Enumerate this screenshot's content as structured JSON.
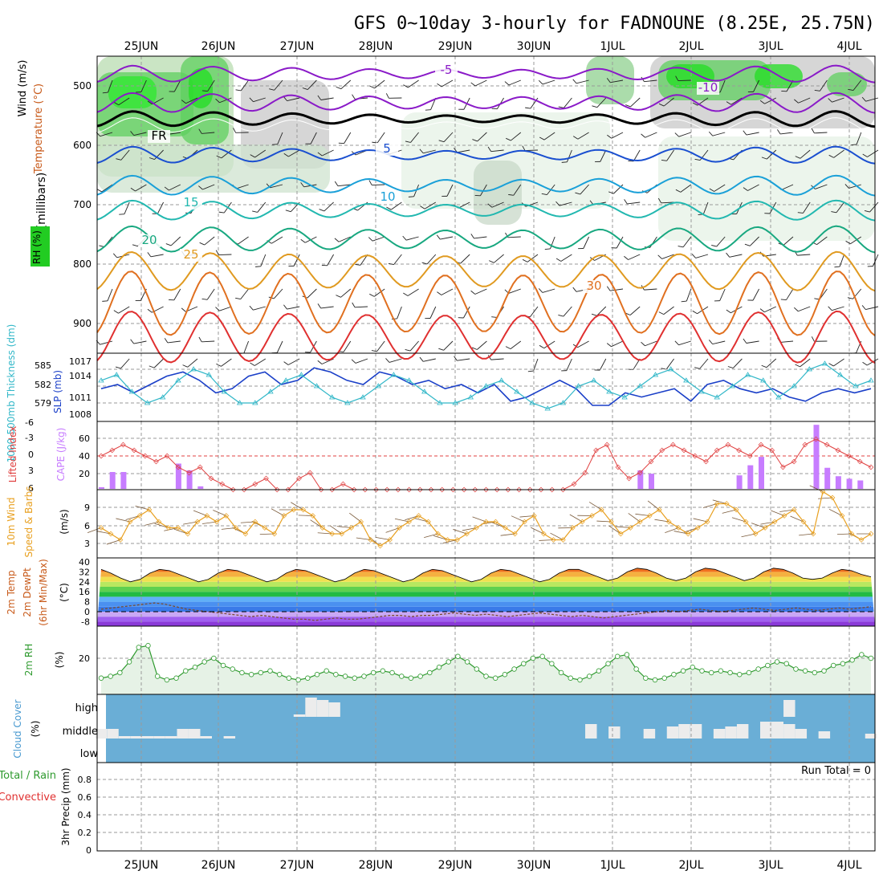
{
  "title": "GFS 0~10day 3-hourly for FADNOUNE (8.25E, 25.75N)",
  "date_labels": [
    "25JUN",
    "26JUN",
    "27JUN",
    "28JUN",
    "29JUN",
    "30JUN",
    "1JUL",
    "2JUL",
    "3JUL",
    "4JUL"
  ],
  "colors": {
    "grid": "#9a9a9a",
    "cloud_bg": "#6aaed6",
    "rh_line": "#2e9a2e",
    "rh_fill": "#e6f2e6",
    "cape_bar": "#c77dff",
    "lifted_index": "#e04040",
    "slp": "#1a3fc8",
    "thickness": "#31b7c8",
    "wind10m": "#e8a020",
    "purple_contour": "#8a1ac8",
    "fr_line": "#000000"
  },
  "panels": {
    "upper_air": {
      "y_label_wind": "Wind (m/s)",
      "y_label_temp": "Temperature (°C)",
      "y_label_rh": "RH (%)",
      "y_label_p": "(millibars)",
      "y_ticks": [
        "500",
        "600",
        "700",
        "800",
        "900"
      ],
      "contour_labels": [
        "-5",
        "-10",
        "5",
        "10",
        "15",
        "20",
        "25",
        "30",
        "FR"
      ]
    },
    "pressure": {
      "label_thickness": "1000-500mb Thickness (dm)",
      "label_slp": "SLP (mb)",
      "left_ticks": [
        "585",
        "582",
        "579"
      ],
      "right_ticks": [
        "1017",
        "1014",
        "1011",
        "1008"
      ]
    },
    "cape": {
      "label_li": "Lifted Index",
      "label_cape": "CAPE (J/kg)",
      "li_ticks": [
        "-6",
        "-3",
        "0",
        "3",
        "6"
      ],
      "cape_ticks": [
        "60",
        "40",
        "20"
      ]
    },
    "wind10m": {
      "label_a": "10m Wind",
      "label_b": "Speed & Barbs",
      "label_units": "(m/s)",
      "ticks": [
        "9",
        "6",
        "3"
      ]
    },
    "temp2m": {
      "label_a": "2m Temp",
      "label_b": "2m DewPt",
      "label_c": "(6hr Min/Max)",
      "label_units": "(°C)",
      "ticks": [
        "40",
        "32",
        "24",
        "16",
        "8",
        "0",
        "-8"
      ]
    },
    "rh2m": {
      "label": "2m RH",
      "units": "(%)",
      "ticks": [
        "20"
      ]
    },
    "cloud": {
      "label": "Cloud Cover",
      "units": "(%)",
      "levels": [
        "high",
        "middle",
        "low"
      ]
    },
    "precip": {
      "label_a": "Total / Rain",
      "label_b": "Convective",
      "label_c": "3hr Precip (mm)",
      "ticks": [
        "0.8",
        "0.6",
        "0.4",
        "0.2",
        "0"
      ],
      "run_total": "Run Total = 0"
    }
  },
  "chart_data": {
    "type": "line",
    "x_dates": [
      "25JUN",
      "26JUN",
      "27JUN",
      "28JUN",
      "29JUN",
      "30JUN",
      "1JUL",
      "2JUL",
      "3JUL",
      "4JUL"
    ],
    "rh2m_pct": [
      9,
      10,
      12,
      18,
      26,
      27,
      10,
      8,
      9,
      13,
      15,
      18,
      20,
      16,
      14,
      12,
      11,
      12,
      13,
      11,
      9,
      8,
      9,
      11,
      13,
      11,
      10,
      9,
      10,
      12,
      13,
      12,
      10,
      9,
      10,
      12,
      15,
      18,
      21,
      18,
      14,
      10,
      9,
      11,
      14,
      17,
      20,
      21,
      17,
      12,
      9,
      8,
      10,
      13,
      17,
      21,
      22,
      14,
      9,
      8,
      9,
      11,
      13,
      15,
      13,
      12,
      13,
      12,
      11,
      12,
      14,
      16,
      18,
      17,
      14,
      13,
      12,
      13,
      16,
      17,
      19,
      22,
      20
    ],
    "temp2m_c": [
      34,
      31,
      27,
      24,
      26,
      31,
      34,
      33,
      30,
      27,
      24,
      26,
      31,
      34,
      33,
      30,
      27,
      24,
      26,
      31,
      34,
      33,
      30,
      27,
      24,
      26,
      31,
      34,
      33,
      30,
      27,
      24,
      26,
      31,
      34,
      33,
      30,
      27,
      24,
      26,
      31,
      34,
      33,
      30,
      27,
      24,
      26,
      31,
      34,
      34,
      31,
      28,
      25,
      27,
      32,
      35,
      34,
      31,
      27,
      25,
      27,
      32,
      35,
      34,
      31,
      28,
      25,
      27,
      32,
      35,
      34,
      31,
      27,
      26,
      27,
      31,
      34,
      33,
      30,
      28
    ],
    "dewpt2m_c": [
      2,
      3,
      4,
      5,
      6,
      7,
      6,
      4,
      2,
      1,
      0,
      -1,
      -2,
      -3,
      -4,
      -3,
      -4,
      -5,
      -6,
      -6,
      -7,
      -6,
      -5,
      -6,
      -6,
      -5,
      -4,
      -3,
      -3,
      -4,
      -3,
      -3,
      -2,
      -1,
      -2,
      -3,
      -2,
      -3,
      -4,
      -3,
      -2,
      -1,
      -2,
      -3,
      -4,
      -3,
      -4,
      -5,
      -4,
      -3,
      -2,
      -1,
      0,
      1,
      0,
      1,
      2,
      1,
      0,
      1,
      2,
      3,
      2,
      1,
      2,
      3,
      2,
      1,
      2,
      3,
      2,
      3,
      4
    ],
    "wind10m_ms": [
      5,
      4,
      3,
      6,
      7,
      8,
      6,
      5,
      5,
      4,
      6,
      7,
      6,
      7,
      5,
      4,
      6,
      5,
      4,
      7,
      8,
      8,
      7,
      5,
      4,
      4,
      5,
      6,
      3,
      2,
      3,
      5,
      6,
      7,
      6,
      4,
      3,
      3,
      4,
      5,
      6,
      6,
      5,
      4,
      6,
      7,
      4,
      3,
      3,
      5,
      6,
      7,
      8,
      6,
      4,
      5,
      6,
      7,
      8,
      6,
      5,
      4,
      5,
      6,
      9,
      9,
      8,
      6,
      4,
      5,
      6,
      7,
      8,
      6,
      4,
      11,
      10,
      7,
      4,
      3,
      4
    ],
    "slp_mb": [
      1012,
      1013,
      1011,
      1013,
      1015,
      1016,
      1014,
      1011,
      1012,
      1015,
      1016,
      1013,
      1014,
      1017,
      1016,
      1014,
      1013,
      1016,
      1015,
      1013,
      1014,
      1012,
      1013,
      1011,
      1013,
      1009,
      1010,
      1012,
      1014,
      1012,
      1008,
      1008,
      1011,
      1010,
      1011,
      1012,
      1009,
      1013,
      1014,
      1012,
      1011,
      1012,
      1010,
      1009,
      1011,
      1012,
      1011,
      1012
    ],
    "thickness_dm": [
      583,
      584,
      581,
      579,
      580,
      583,
      585,
      584,
      581,
      579,
      579,
      581,
      583,
      584,
      582,
      580,
      579,
      580,
      582,
      584,
      583,
      581,
      579,
      579,
      580,
      582,
      583,
      581,
      579,
      578,
      579,
      582,
      583,
      581,
      580,
      582,
      584,
      585,
      583,
      581,
      580,
      582,
      584,
      583,
      580,
      582,
      585,
      586,
      584,
      582,
      583
    ],
    "lifted_index": [
      0,
      -1,
      -2,
      -1,
      0,
      1,
      0,
      2,
      3,
      2,
      4,
      5,
      6,
      6,
      5,
      4,
      6,
      6,
      4,
      3,
      6,
      6,
      5,
      6,
      6,
      6,
      6,
      6,
      6,
      6,
      6,
      6,
      6,
      6,
      6,
      6,
      6,
      6,
      6,
      6,
      6,
      6,
      6,
      5,
      3,
      -1,
      -2,
      2,
      4,
      3,
      1,
      -1,
      -2,
      -1,
      0,
      1,
      -1,
      -2,
      -1,
      0,
      -2,
      -1,
      2,
      1,
      -2,
      -3,
      -2,
      -1,
      0,
      1,
      2
    ],
    "cape_jkg": [
      2,
      20,
      20,
      0,
      0,
      0,
      0,
      30,
      22,
      3,
      0,
      0,
      0,
      0,
      0,
      0,
      0,
      0,
      0,
      0,
      0,
      0,
      0,
      0,
      0,
      0,
      0,
      0,
      0,
      0,
      0,
      0,
      0,
      0,
      0,
      0,
      0,
      0,
      0,
      0,
      0,
      0,
      0,
      0,
      0,
      0,
      0,
      0,
      0,
      22,
      18,
      0,
      0,
      0,
      0,
      0,
      0,
      0,
      16,
      28,
      38,
      0,
      0,
      0,
      0,
      76,
      25,
      15,
      12,
      10,
      0
    ],
    "cloud_middle_pct": [
      20,
      20,
      5,
      5,
      5,
      5,
      5,
      20,
      20,
      5,
      0,
      5,
      0,
      0,
      0,
      0,
      0,
      0,
      0,
      0,
      0,
      0,
      0,
      0,
      0,
      0,
      0,
      0,
      0,
      0,
      0,
      0,
      0,
      0,
      0,
      0,
      0,
      0,
      0,
      0,
      0,
      0,
      30,
      0,
      25,
      0,
      0,
      20,
      0,
      25,
      30,
      30,
      0,
      20,
      25,
      30,
      0,
      35,
      35,
      30,
      20,
      0,
      15,
      0,
      0,
      0,
      10
    ],
    "cloud_high_pct": [
      0,
      0,
      0,
      0,
      0,
      0,
      0,
      0,
      0,
      0,
      0,
      0,
      0,
      0,
      0,
      0,
      0,
      5,
      40,
      35,
      30,
      0,
      0,
      0,
      0,
      0,
      0,
      0,
      0,
      0,
      0,
      0,
      0,
      0,
      0,
      0,
      0,
      0,
      0,
      0,
      0,
      0,
      0,
      0,
      0,
      0,
      0,
      0,
      0,
      0,
      0,
      0,
      0,
      0,
      0,
      0,
      0,
      0,
      0,
      35,
      0,
      0,
      0,
      0,
      0,
      0,
      0
    ],
    "precip_mm": 0
  }
}
